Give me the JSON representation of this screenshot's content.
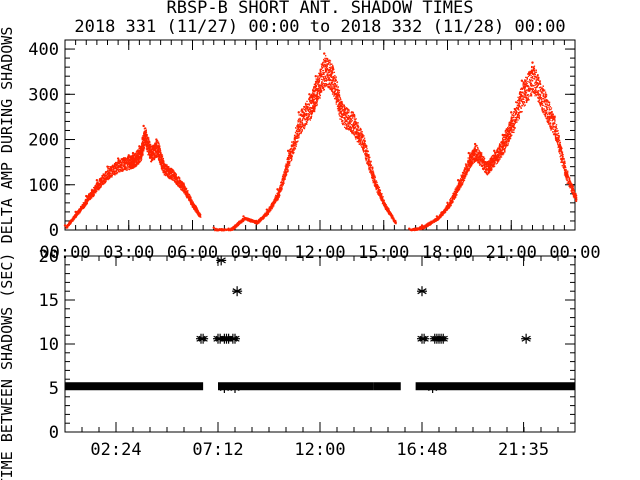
{
  "title_line1": "RBSP-B SHORT ANT. SHADOW TIMES",
  "title_line2": "2018 331 (11/27) 00:00 to 2018 332 (11/28) 00:00",
  "chart_data": [
    {
      "type": "scatter",
      "ylabel": "DELTA AMP DURING SHADOWS",
      "xlabel": "",
      "xlim": [
        0,
        24
      ],
      "ylim": [
        0,
        420
      ],
      "x_tick_labels": [
        "00:00",
        "03:00",
        "06:00",
        "09:00",
        "12:00",
        "15:00",
        "18:00",
        "21:00",
        "00:00"
      ],
      "x_ticks": [
        0,
        3,
        6,
        9,
        12,
        15,
        18,
        21,
        24
      ],
      "y_ticks": [
        0,
        100,
        200,
        300,
        400
      ],
      "y_tick_labels": [
        "0",
        "100",
        "200",
        "300",
        "400"
      ],
      "marker_color": "#ff2200",
      "grid": false,
      "series": [
        {
          "segment": "arc-1",
          "x": [
            0.0,
            0.5,
            1.0,
            1.5,
            2.0,
            2.5,
            3.0,
            3.2,
            3.5,
            3.7,
            4.0,
            4.3,
            4.6,
            5.0,
            5.5,
            6.0,
            6.3
          ],
          "y": [
            10,
            40,
            75,
            110,
            140,
            158,
            165,
            170,
            185,
            230,
            185,
            200,
            150,
            135,
            105,
            60,
            35
          ]
        },
        {
          "segment": "arc-2",
          "x": [
            7.0,
            7.7,
            8.4,
            9.0,
            9.5,
            10.0,
            10.5,
            11.0,
            11.5,
            11.8,
            12.2,
            12.6,
            13.0,
            13.5,
            14.0,
            14.5,
            15.0,
            15.5
          ],
          "y": [
            5,
            3,
            30,
            20,
            45,
            90,
            175,
            260,
            300,
            340,
            390,
            360,
            280,
            260,
            210,
            120,
            60,
            20
          ]
        },
        {
          "segment": "arc-3",
          "x": [
            16.2,
            16.8,
            17.5,
            18.0,
            18.5,
            19.0,
            19.3,
            19.8,
            20.2,
            20.6,
            21.0,
            21.5,
            22.0,
            22.5,
            23.0,
            23.5,
            24.0
          ],
          "y": [
            3,
            10,
            30,
            60,
            110,
            170,
            190,
            150,
            175,
            210,
            260,
            330,
            370,
            310,
            250,
            140,
            75
          ]
        }
      ]
    },
    {
      "type": "scatter",
      "ylabel": "TIME BETWEEN SHADOWS (SEC)",
      "xlabel": "",
      "xlim": [
        0,
        24
      ],
      "ylim": [
        0,
        20
      ],
      "x_tick_labels": [
        "02:24",
        "07:12",
        "12:00",
        "16:48",
        "21:35"
      ],
      "x_ticks": [
        2.4,
        7.2,
        12.0,
        16.8,
        21.58
      ],
      "y_ticks": [
        0,
        5,
        10,
        15,
        20
      ],
      "y_tick_labels": [
        "0",
        "5",
        "10",
        "15",
        "20"
      ],
      "marker": "*",
      "marker_color": "#000000",
      "grid": false,
      "dense_bands": [
        {
          "x_start": 0.0,
          "x_end": 6.5,
          "y": 5.2
        },
        {
          "x_start": 7.2,
          "x_end": 14.5,
          "y": 5.2
        },
        {
          "x_start": 14.5,
          "x_end": 15.8,
          "y": 5.2
        },
        {
          "x_start": 16.5,
          "x_end": 24.0,
          "y": 5.2
        }
      ],
      "points": {
        "x": [
          6.4,
          6.5,
          7.2,
          7.3,
          7.35,
          7.5,
          7.6,
          7.7,
          7.9,
          8.0,
          8.1,
          7.5,
          8.0,
          16.8,
          16.9,
          17.4,
          17.5,
          17.6,
          17.7,
          17.8,
          16.8,
          17.3,
          21.7
        ],
        "y": [
          10.6,
          10.6,
          10.6,
          10.6,
          19.5,
          10.6,
          10.6,
          10.6,
          10.6,
          10.6,
          16.0,
          5.0,
          5.0,
          10.6,
          10.6,
          10.6,
          10.6,
          10.6,
          10.6,
          10.6,
          16.0,
          5.0,
          10.6
        ]
      }
    }
  ]
}
